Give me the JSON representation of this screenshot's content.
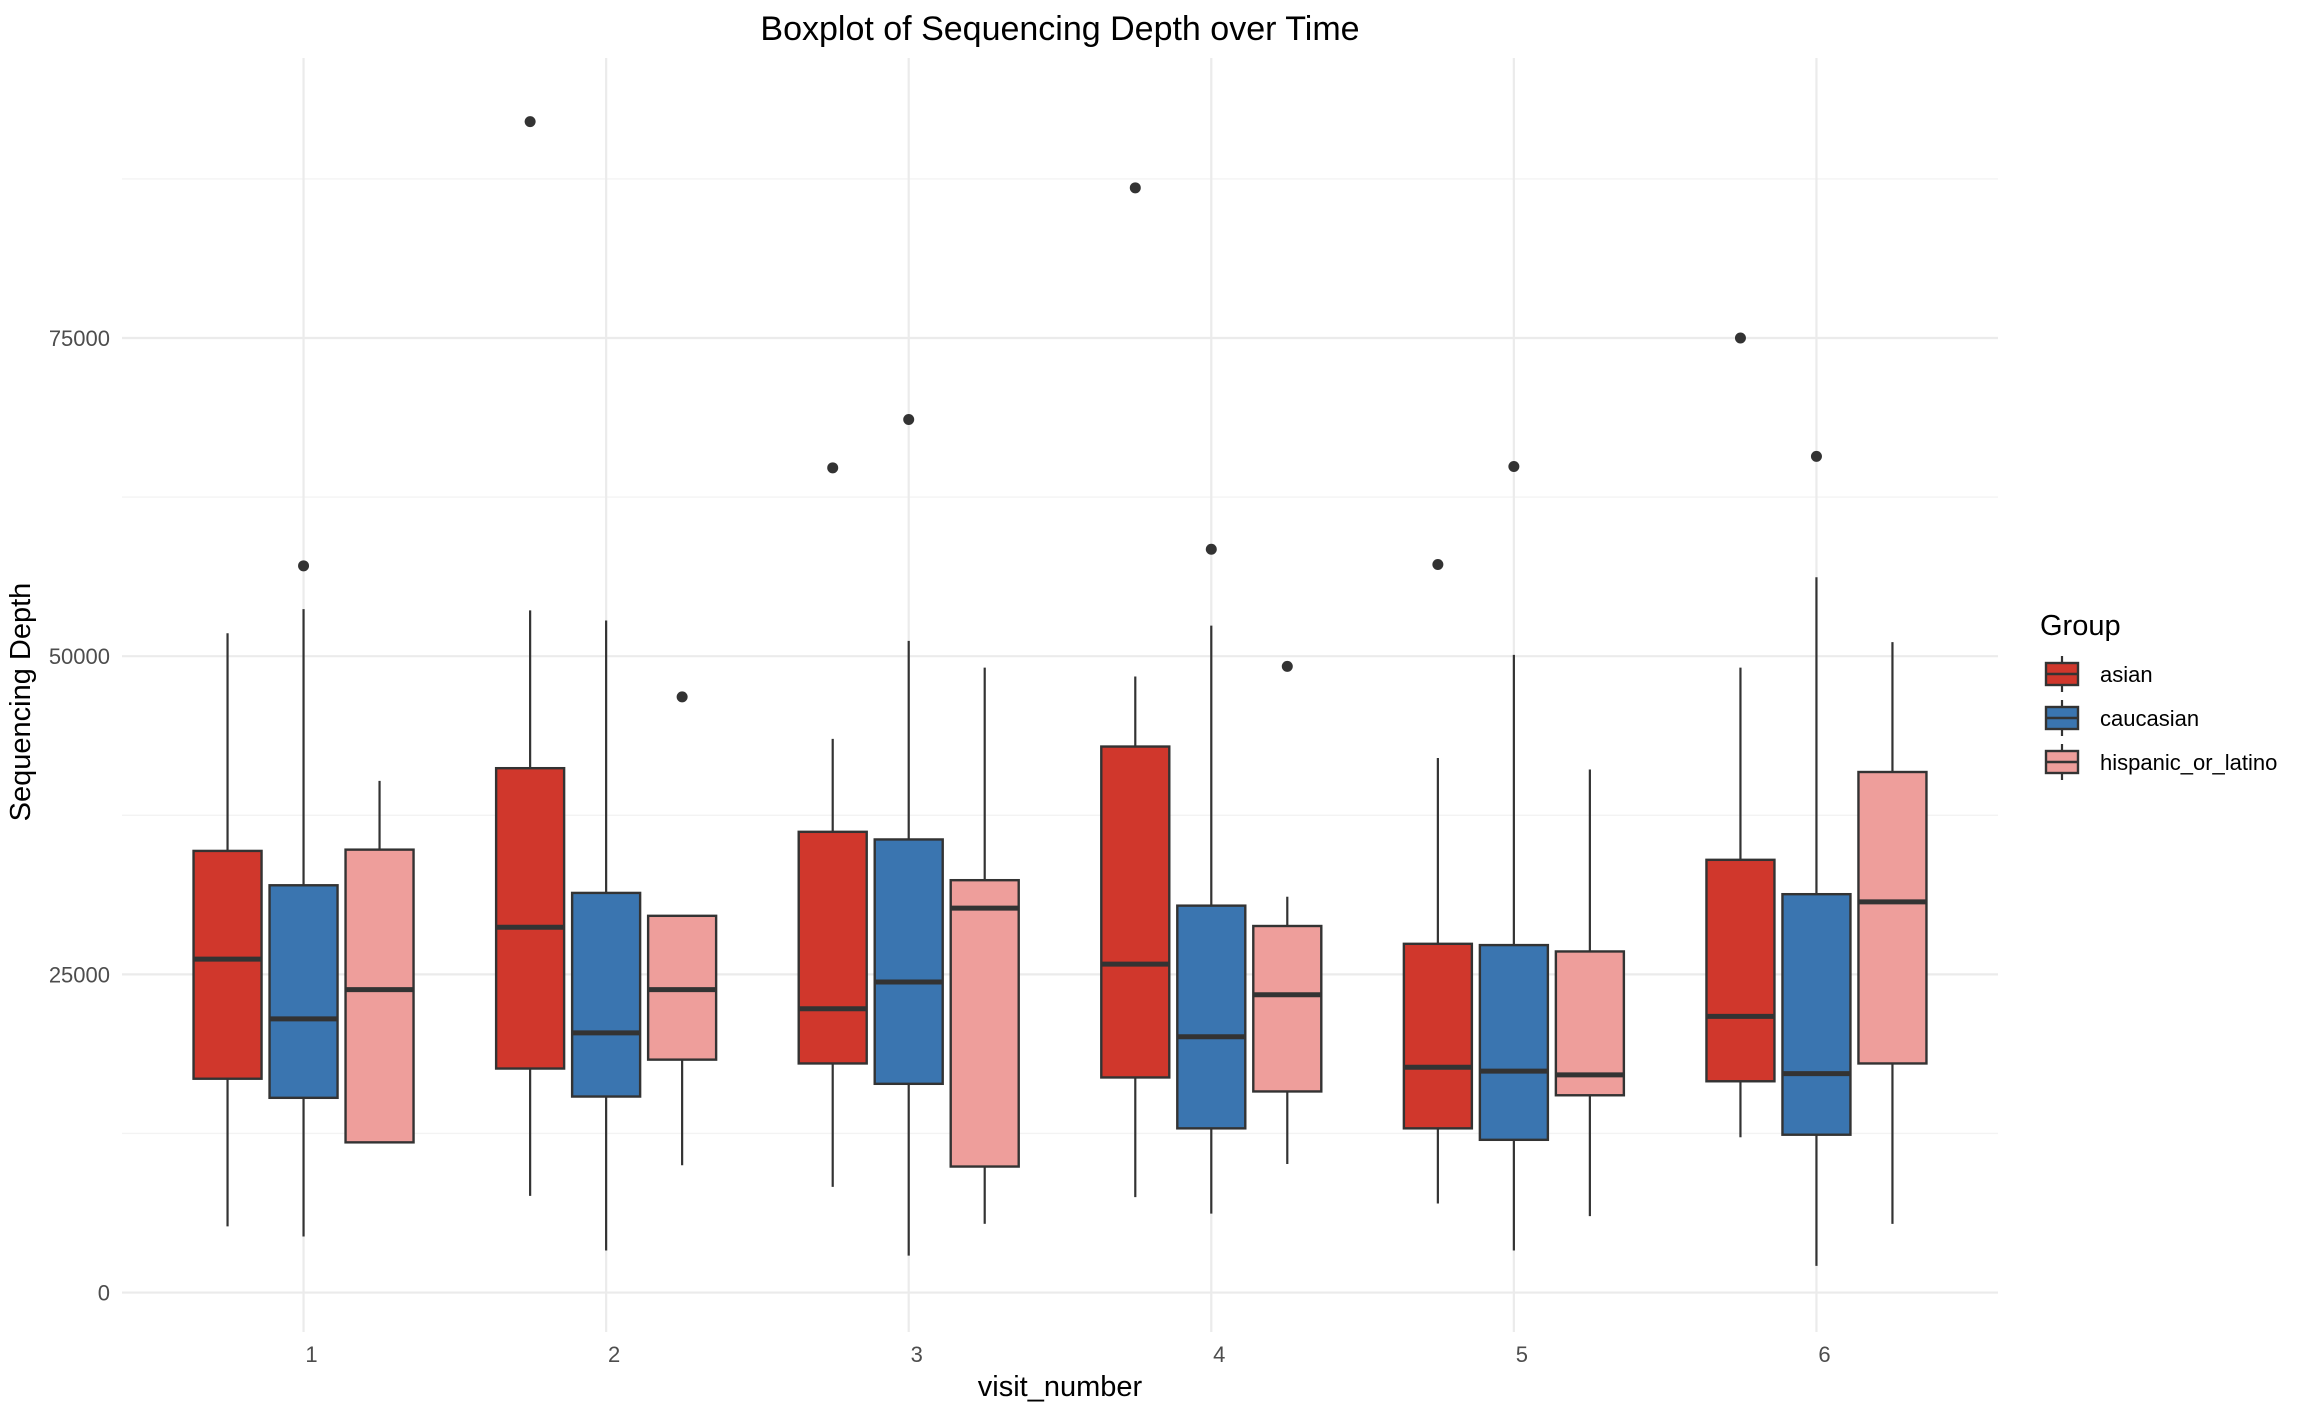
{
  "chart_data": {
    "type": "boxplot",
    "title": "Boxplot of Sequencing Depth over Time",
    "xlabel": "visit_number",
    "ylabel": "Sequencing Depth",
    "ylim": [
      -3100,
      97000
    ],
    "y_ticks": [
      0,
      25000,
      50000,
      75000
    ],
    "y_tick_labels": [
      "0",
      "25000",
      "50000",
      "75000"
    ],
    "grid": true,
    "legend": {
      "title": "Group",
      "placement": "right"
    },
    "categories": [
      "1",
      "2",
      "3",
      "4",
      "5",
      "6"
    ],
    "series": [
      {
        "name": "asian",
        "color": "#d0372c",
        "boxes": [
          {
            "lower": 5200,
            "q1": 16800,
            "median": 26200,
            "q3": 34700,
            "upper": 51800,
            "outliers": []
          },
          {
            "lower": 7600,
            "q1": 17600,
            "median": 28700,
            "q3": 41200,
            "upper": 53600,
            "outliers": [
              92000
            ]
          },
          {
            "lower": 8300,
            "q1": 18000,
            "median": 22300,
            "q3": 36200,
            "upper": 43500,
            "outliers": [
              64800
            ]
          },
          {
            "lower": 7500,
            "q1": 16900,
            "median": 25800,
            "q3": 42900,
            "upper": 48400,
            "outliers": [
              86800
            ]
          },
          {
            "lower": 7000,
            "q1": 12900,
            "median": 17700,
            "q3": 27400,
            "upper": 42000,
            "outliers": [
              57200
            ]
          },
          {
            "lower": 12200,
            "q1": 16600,
            "median": 21700,
            "q3": 34000,
            "upper": 49100,
            "outliers": [
              75000
            ]
          }
        ]
      },
      {
        "name": "caucasian",
        "color": "#3a75b0",
        "boxes": [
          {
            "lower": 4400,
            "q1": 15300,
            "median": 21500,
            "q3": 32000,
            "upper": 53700,
            "outliers": [
              57100
            ]
          },
          {
            "lower": 3300,
            "q1": 15400,
            "median": 20400,
            "q3": 31400,
            "upper": 52800,
            "outliers": []
          },
          {
            "lower": 2900,
            "q1": 16400,
            "median": 24400,
            "q3": 35600,
            "upper": 51200,
            "outliers": [
              68600
            ]
          },
          {
            "lower": 6200,
            "q1": 12900,
            "median": 20100,
            "q3": 30400,
            "upper": 52400,
            "outliers": [
              58400
            ]
          },
          {
            "lower": 3300,
            "q1": 12000,
            "median": 17400,
            "q3": 27300,
            "upper": 50100,
            "outliers": [
              64900
            ]
          },
          {
            "lower": 2100,
            "q1": 12400,
            "median": 17200,
            "q3": 31300,
            "upper": 56200,
            "outliers": [
              65700
            ]
          }
        ]
      },
      {
        "name": "hispanic_or_latino",
        "color": "#ee9e9b",
        "boxes": [
          {
            "lower": 11800,
            "q1": 11800,
            "median": 23800,
            "q3": 34800,
            "upper": 40200,
            "outliers": []
          },
          {
            "lower": 10000,
            "q1": 18300,
            "median": 23800,
            "q3": 29600,
            "upper": 29600,
            "outliers": [
              46800
            ]
          },
          {
            "lower": 5400,
            "q1": 9900,
            "median": 30200,
            "q3": 32400,
            "upper": 49100,
            "outliers": []
          },
          {
            "lower": 10100,
            "q1": 15800,
            "median": 23400,
            "q3": 28800,
            "upper": 31100,
            "outliers": [
              49200
            ]
          },
          {
            "lower": 6000,
            "q1": 15500,
            "median": 17100,
            "q3": 26800,
            "upper": 41100,
            "outliers": []
          },
          {
            "lower": 5400,
            "q1": 18000,
            "median": 30700,
            "q3": 40900,
            "upper": 51100,
            "outliers": []
          }
        ]
      }
    ]
  }
}
